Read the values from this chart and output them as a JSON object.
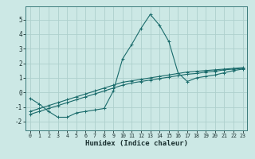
{
  "xlabel": "Humidex (Indice chaleur)",
  "ylabel": "",
  "background_color": "#cce8e5",
  "line_color": "#1a6b6b",
  "grid_color": "#aed0cc",
  "xlim": [
    -0.5,
    23.5
  ],
  "ylim": [
    -2.6,
    5.9
  ],
  "xticks": [
    0,
    1,
    2,
    3,
    4,
    5,
    6,
    7,
    8,
    9,
    10,
    11,
    12,
    13,
    14,
    15,
    16,
    17,
    18,
    19,
    20,
    21,
    22,
    23
  ],
  "yticks": [
    -2,
    -1,
    0,
    1,
    2,
    3,
    4,
    5
  ],
  "x": [
    0,
    1,
    2,
    3,
    4,
    5,
    6,
    7,
    8,
    9,
    10,
    11,
    12,
    13,
    14,
    15,
    16,
    17,
    18,
    19,
    20,
    21,
    22,
    23
  ],
  "y_curve": [
    -0.4,
    -0.8,
    -1.3,
    -1.7,
    -1.7,
    -1.4,
    -1.3,
    -1.2,
    -1.1,
    0.1,
    2.3,
    3.3,
    4.4,
    5.35,
    4.6,
    3.5,
    1.35,
    0.75,
    1.0,
    1.1,
    1.2,
    1.35,
    1.5,
    1.6
  ],
  "y_line1": [
    -1.3,
    -1.1,
    -0.9,
    -0.7,
    -0.5,
    -0.3,
    -0.1,
    0.1,
    0.3,
    0.5,
    0.7,
    0.8,
    0.9,
    1.0,
    1.1,
    1.2,
    1.3,
    1.4,
    1.45,
    1.5,
    1.55,
    1.6,
    1.65,
    1.7
  ],
  "y_line2": [
    -1.5,
    -1.3,
    -1.1,
    -0.9,
    -0.7,
    -0.5,
    -0.3,
    -0.1,
    0.1,
    0.3,
    0.5,
    0.65,
    0.75,
    0.85,
    0.95,
    1.05,
    1.15,
    1.25,
    1.3,
    1.4,
    1.45,
    1.55,
    1.6,
    1.65
  ]
}
